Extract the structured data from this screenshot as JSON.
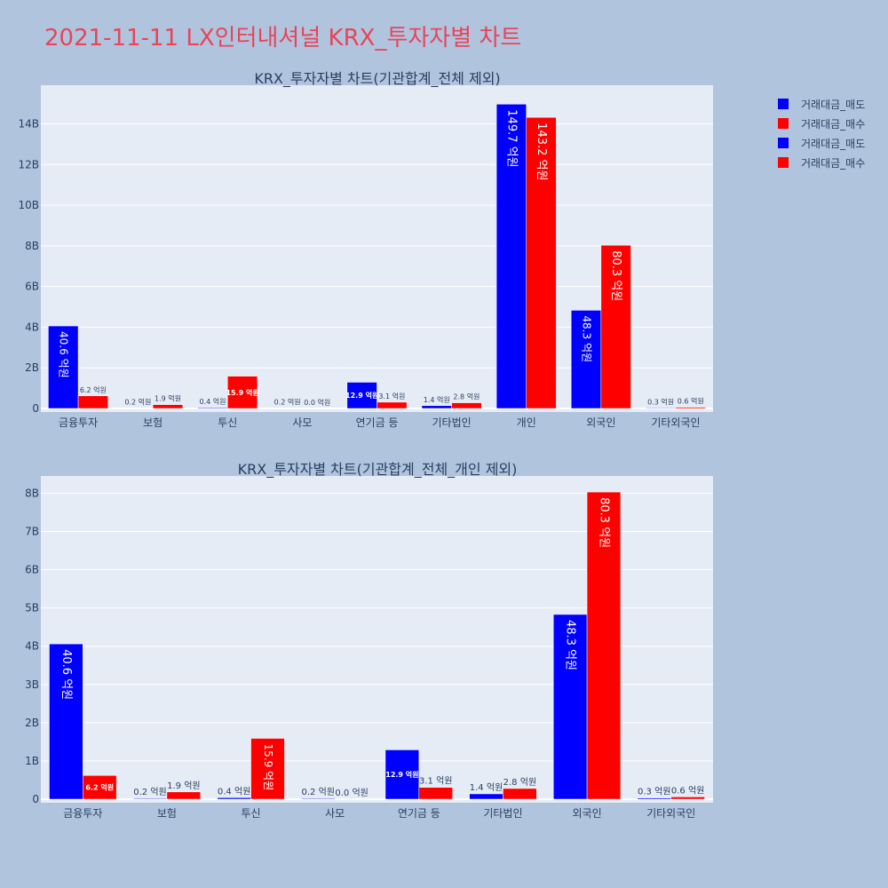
{
  "page": {
    "title": "2021-11-11 LX인터내셔널 KRX_투자자별 차트",
    "background": "#b0c4de",
    "plot_background": "#e5ecf6",
    "title_color": "#e8455a"
  },
  "legend": [
    {
      "label": "거래대금_매도",
      "color": "#0000ff"
    },
    {
      "label": "거래대금_매수",
      "color": "#ff0000"
    },
    {
      "label": "거래대금_매도",
      "color": "#0000ff"
    },
    {
      "label": "거래대금_매수",
      "color": "#ff0000"
    }
  ],
  "chart_data": [
    {
      "type": "bar",
      "title": "KRX_투자자별 차트(기관합계_전체 제외)",
      "categories": [
        "금융투자",
        "보험",
        "투신",
        "사모",
        "연기금 등",
        "기타법인",
        "개인",
        "외국인",
        "기타외국인"
      ],
      "yticks": [
        "0",
        "2B",
        "4B",
        "6B",
        "8B",
        "10B",
        "12B",
        "14B"
      ],
      "ylim": [
        0,
        15.9
      ],
      "grid": true,
      "series": [
        {
          "name": "거래대금_매도",
          "color": "#0000ff",
          "values": [
            4.06,
            0.02,
            0.04,
            0.02,
            1.29,
            0.14,
            14.97,
            4.83,
            0.03
          ],
          "labels": [
            "40.6 억원",
            "0.2 억원",
            "0.4 억원",
            "0.2 억원",
            "12.9 억원",
            "1.4 억원",
            "149.7 억원",
            "48.3 억원",
            "0.3 억원"
          ]
        },
        {
          "name": "거래대금_매수",
          "color": "#ff0000",
          "values": [
            0.62,
            0.19,
            1.59,
            0.0,
            0.31,
            0.28,
            14.32,
            8.03,
            0.06
          ],
          "labels": [
            "6.2 억원",
            "1.9 억원",
            "15.9 억원",
            "0.0 억원",
            "3.1 억원",
            "2.8 억원",
            "143.2 억원",
            "80.3 억원",
            "0.6 억원"
          ]
        }
      ]
    },
    {
      "type": "bar",
      "title": "KRX_투자자별 차트(기관합계_전체_개인 제외)",
      "categories": [
        "금융투자",
        "보험",
        "투신",
        "사모",
        "연기금 등",
        "기타법인",
        "외국인",
        "기타외국인"
      ],
      "yticks": [
        "0",
        "1B",
        "2B",
        "3B",
        "4B",
        "5B",
        "6B",
        "7B",
        "8B"
      ],
      "ylim": [
        0,
        8.45
      ],
      "grid": true,
      "series": [
        {
          "name": "거래대금_매도",
          "color": "#0000ff",
          "values": [
            4.06,
            0.02,
            0.04,
            0.02,
            1.29,
            0.14,
            4.83,
            0.03
          ],
          "labels": [
            "40.6 억원",
            "0.2 억원",
            "0.4 억원",
            "0.2 억원",
            "12.9 억원",
            "1.4 억원",
            "48.3 억원",
            "0.3 억원"
          ]
        },
        {
          "name": "거래대금_매수",
          "color": "#ff0000",
          "values": [
            0.62,
            0.19,
            1.59,
            0.0,
            0.31,
            0.28,
            8.03,
            0.06
          ],
          "labels": [
            "6.2 억원",
            "1.9 억원",
            "15.9 억원",
            "0.0 억원",
            "3.1 억원",
            "2.8 억원",
            "80.3 억원",
            "0.6 억원"
          ]
        }
      ]
    }
  ]
}
